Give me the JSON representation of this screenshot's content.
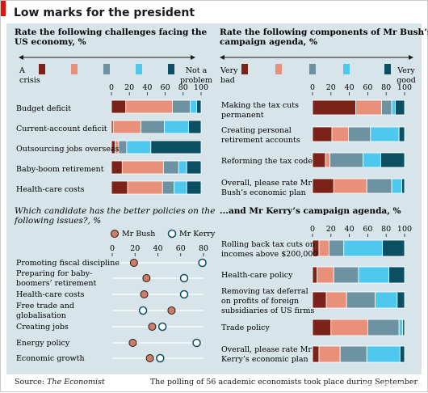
{
  "title": "Low marks for the president",
  "source_label": "Source: ",
  "source_name": "The Economist",
  "note": "The polling of 56 academic economists took place during September",
  "watermark": "thewolfweb.com",
  "colors": {
    "red_corner": "#e3120b",
    "panel_bg": "#d7e4ea",
    "scale": [
      "#7b2318",
      "#e9907a",
      "#6d93a3",
      "#4ec8ee",
      "#0b4f63"
    ],
    "bush_marker": "#cf7b66",
    "kerry_marker": "#ffffff",
    "kerry_marker_stroke": "#0b4f63"
  },
  "scale_labels": {
    "left_top_low": "A",
    "left_top_low2": "crisis",
    "left_top_high": "Not a",
    "left_top_high2": "problem",
    "right_top_low": "Very",
    "right_top_low2": "bad",
    "right_top_high": "Very",
    "right_top_high2": "good"
  },
  "chart_data": [
    {
      "type": "bar",
      "stacked": true,
      "title": "Rate the following challenges facing the US economy, %",
      "title_lines": [
        "Rate the following challenges facing the",
        "US economy, %"
      ],
      "legend": [
        "A crisis",
        "",
        "",
        "",
        "Not a problem"
      ],
      "xlim": [
        0,
        100
      ],
      "ticks": [
        0,
        20,
        40,
        60,
        80,
        100
      ],
      "categories": [
        "Budget deficit",
        "Current-account deficit",
        "Outsourcing jobs overseas",
        "Baby-boom retirement",
        "Health-care costs"
      ],
      "series": [
        {
          "values": [
            16,
            2,
            4,
            12,
            18
          ]
        },
        {
          "values": [
            52,
            31,
            4,
            46,
            39
          ]
        },
        {
          "values": [
            20,
            26,
            9,
            17,
            13
          ]
        },
        {
          "values": [
            7,
            27,
            27,
            9,
            14
          ]
        },
        {
          "values": [
            5,
            14,
            56,
            16,
            16
          ]
        }
      ]
    },
    {
      "type": "bar",
      "stacked": true,
      "title": "Rate the following components of Mr Bush's campaign agenda, %",
      "title_lines": [
        "Rate the following components of Mr Bush’s",
        "campaign agenda, %"
      ],
      "legend": [
        "Very bad",
        "",
        "",
        "",
        "Very good"
      ],
      "xlim": [
        0,
        100
      ],
      "ticks": [
        0,
        20,
        40,
        60,
        80,
        100
      ],
      "categories": [
        [
          "Making the tax cuts",
          "permanent"
        ],
        [
          "Creating personal",
          "retirement accounts"
        ],
        [
          "Reforming the tax code"
        ],
        [
          "Overall, please rate Mr",
          "Bush’s economic plan"
        ]
      ],
      "series": [
        {
          "values": [
            47,
            21,
            14,
            23
          ]
        },
        {
          "values": [
            28,
            18,
            5,
            36
          ]
        },
        {
          "values": [
            11,
            24,
            36,
            27
          ]
        },
        {
          "values": [
            4,
            31,
            19,
            11
          ]
        },
        {
          "values": [
            10,
            6,
            26,
            3
          ]
        }
      ]
    },
    {
      "type": "scatter",
      "title": "Which candidate has the better policies on the following issues?, %",
      "title_lines": [
        "Which candidate has the better policies on the",
        "following issues?, %"
      ],
      "xlim": [
        0,
        80
      ],
      "ticks": [
        0,
        20,
        40,
        60,
        80
      ],
      "legend": [
        "Mr Bush",
        "Mr Kerry"
      ],
      "categories": [
        [
          "Promoting fiscal discipline"
        ],
        [
          "Preparing for baby-",
          "boomers’ retirement"
        ],
        [
          "Health-care costs"
        ],
        [
          "Free trade and",
          "globalisation"
        ],
        [
          "Creating jobs"
        ],
        [
          "Energy policy"
        ],
        [
          "Economic growth"
        ]
      ],
      "series": [
        {
          "name": "Mr Bush",
          "values": [
            19,
            30,
            28,
            52,
            35,
            18,
            33
          ]
        },
        {
          "name": "Mr Kerry",
          "values": [
            79,
            63,
            63,
            27,
            44,
            74,
            42
          ]
        }
      ]
    },
    {
      "type": "bar",
      "stacked": true,
      "title": "...and Mr Kerry's campaign agenda, %",
      "title_lines": [
        "...and Mr Kerry’s campaign agenda, %"
      ],
      "xlim": [
        0,
        100
      ],
      "ticks": [
        0,
        20,
        40,
        60,
        80,
        100
      ],
      "categories": [
        [
          "Rolling back tax cuts on",
          "incomes above $200,000"
        ],
        [
          "Health-care policy"
        ],
        [
          "Removing tax deferral",
          "on profits of foreign",
          "subsidiaries of US firms"
        ],
        [
          "Trade policy"
        ],
        [
          "Overall, please rate Mr",
          "Kerry’s economic plan"
        ]
      ],
      "series": [
        {
          "values": [
            7,
            5,
            15,
            20,
            7
          ]
        },
        {
          "values": [
            11,
            18,
            22,
            40,
            23
          ]
        },
        {
          "values": [
            16,
            27,
            31,
            34,
            29
          ]
        },
        {
          "values": [
            42,
            33,
            24,
            4,
            36
          ]
        },
        {
          "values": [
            24,
            17,
            8,
            2,
            5
          ]
        }
      ]
    }
  ]
}
